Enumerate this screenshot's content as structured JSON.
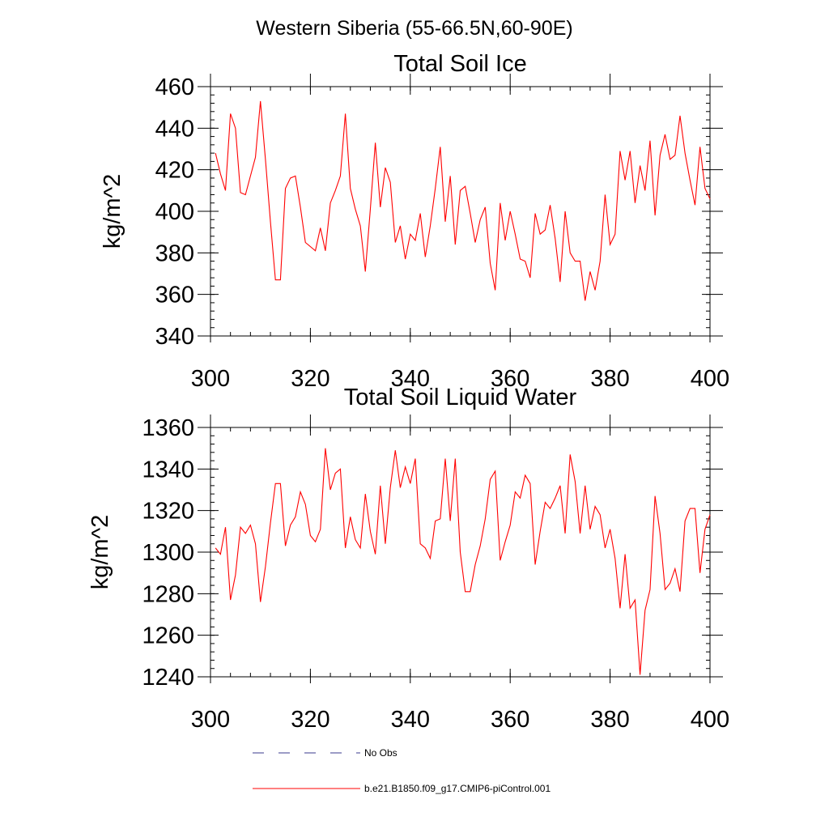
{
  "figure_title": "Western Siberia (55-66.5N,60-90E)",
  "legend": {
    "entries": [
      {
        "label": "No Obs",
        "style": "dashed",
        "color": "#3a3a8c"
      },
      {
        "label": "b.e21.B1850.f09_g17.CMIP6-piControl.001",
        "style": "solid",
        "color": "#ff0000"
      }
    ]
  },
  "chart_data": [
    {
      "type": "line",
      "title": "Total Soil Ice",
      "xlabel": "",
      "ylabel": "kg/m^2",
      "xlim": [
        300,
        400
      ],
      "ylim": [
        340,
        460
      ],
      "xticks": [
        300,
        320,
        340,
        360,
        380,
        400
      ],
      "yticks": [
        340,
        360,
        380,
        400,
        420,
        440,
        460
      ],
      "grid": false,
      "series": [
        {
          "name": "b.e21.B1850.f09_g17.CMIP6-piControl.001",
          "color": "#ff0000",
          "x": [
            301,
            302,
            303,
            304,
            305,
            306,
            307,
            308,
            309,
            310,
            311,
            312,
            313,
            314,
            315,
            316,
            317,
            318,
            319,
            320,
            321,
            322,
            323,
            324,
            325,
            326,
            327,
            328,
            329,
            330,
            331,
            332,
            333,
            334,
            335,
            336,
            337,
            338,
            339,
            340,
            341,
            342,
            343,
            344,
            345,
            346,
            347,
            348,
            349,
            350,
            351,
            352,
            353,
            354,
            355,
            356,
            357,
            358,
            359,
            360,
            361,
            362,
            363,
            364,
            365,
            366,
            367,
            368,
            369,
            370,
            371,
            372,
            373,
            374,
            375,
            376,
            377,
            378,
            379,
            380,
            381,
            382,
            383,
            384,
            385,
            386,
            387,
            388,
            389,
            390,
            391,
            392,
            393,
            394,
            395,
            396,
            397,
            398,
            399,
            400
          ],
          "values": [
            428,
            418,
            410,
            447,
            440,
            409,
            408,
            417,
            426,
            453,
            425,
            395,
            367,
            367,
            411,
            416,
            417,
            402,
            385,
            383,
            381,
            392,
            381,
            404,
            410,
            417,
            447,
            411,
            401,
            393,
            371,
            401,
            433,
            402,
            421,
            414,
            385,
            393,
            377,
            389,
            386,
            399,
            378,
            393,
            411,
            431,
            395,
            417,
            384,
            410,
            412,
            399,
            385,
            396,
            402,
            375,
            362,
            404,
            386,
            400,
            389,
            377,
            376,
            368,
            399,
            389,
            391,
            403,
            387,
            366,
            400,
            380,
            376,
            376,
            357,
            371,
            362,
            376,
            408,
            384,
            389,
            429,
            415,
            429,
            404,
            422,
            410,
            434,
            398,
            427,
            437,
            425,
            427,
            446,
            428,
            415,
            403,
            431,
            411,
            406
          ]
        }
      ]
    },
    {
      "type": "line",
      "title": "Total Soil Liquid Water",
      "xlabel": "",
      "ylabel": "kg/m^2",
      "xlim": [
        300,
        400
      ],
      "ylim": [
        1240,
        1360
      ],
      "xticks": [
        300,
        320,
        340,
        360,
        380,
        400
      ],
      "yticks": [
        1240,
        1260,
        1280,
        1300,
        1320,
        1340,
        1360
      ],
      "grid": false,
      "series": [
        {
          "name": "b.e21.B1850.f09_g17.CMIP6-piControl.001",
          "color": "#ff0000",
          "x": [
            301,
            302,
            303,
            304,
            305,
            306,
            307,
            308,
            309,
            310,
            311,
            312,
            313,
            314,
            315,
            316,
            317,
            318,
            319,
            320,
            321,
            322,
            323,
            324,
            325,
            326,
            327,
            328,
            329,
            330,
            331,
            332,
            333,
            334,
            335,
            336,
            337,
            338,
            339,
            340,
            341,
            342,
            343,
            344,
            345,
            346,
            347,
            348,
            349,
            350,
            351,
            352,
            353,
            354,
            355,
            356,
            357,
            358,
            359,
            360,
            361,
            362,
            363,
            364,
            365,
            366,
            367,
            368,
            369,
            370,
            371,
            372,
            373,
            374,
            375,
            376,
            377,
            378,
            379,
            380,
            381,
            382,
            383,
            384,
            385,
            386,
            387,
            388,
            389,
            390,
            391,
            392,
            393,
            394,
            395,
            396,
            397,
            398,
            399,
            400
          ],
          "values": [
            1302,
            1299,
            1312,
            1277,
            1289,
            1312,
            1309,
            1313,
            1304,
            1276,
            1293,
            1314,
            1333,
            1333,
            1303,
            1313,
            1317,
            1329,
            1323,
            1308,
            1305,
            1311,
            1350,
            1330,
            1338,
            1340,
            1302,
            1317,
            1306,
            1302,
            1328,
            1310,
            1299,
            1332,
            1304,
            1331,
            1349,
            1331,
            1341,
            1333,
            1345,
            1304,
            1302,
            1297,
            1315,
            1316,
            1345,
            1315,
            1345,
            1300,
            1281,
            1281,
            1294,
            1303,
            1316,
            1335,
            1339,
            1296,
            1305,
            1313,
            1329,
            1326,
            1337,
            1333,
            1294,
            1310,
            1324,
            1321,
            1326,
            1332,
            1309,
            1347,
            1334,
            1309,
            1332,
            1311,
            1322,
            1318,
            1302,
            1311,
            1297,
            1273,
            1299,
            1273,
            1277,
            1241,
            1272,
            1282,
            1327,
            1309,
            1282,
            1285,
            1292,
            1281,
            1315,
            1321,
            1321,
            1290,
            1311,
            1318
          ]
        }
      ]
    }
  ]
}
